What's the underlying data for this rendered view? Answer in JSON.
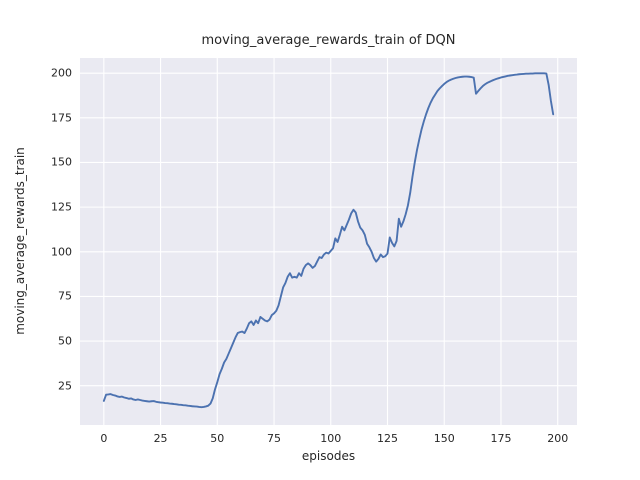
{
  "chart_data": {
    "type": "line",
    "title": "moving_average_rewards_train of DQN",
    "xlabel": "episodes",
    "ylabel": "moving_average_rewards_train",
    "x_ticks": [
      0,
      25,
      50,
      75,
      100,
      125,
      150,
      175,
      200
    ],
    "y_ticks": [
      25,
      50,
      75,
      100,
      125,
      150,
      175,
      200
    ],
    "xlim": [
      -10.5,
      208.5
    ],
    "ylim": [
      3,
      208.5
    ],
    "grid": true,
    "legend_position": "none",
    "colors": {
      "line": "#4C72B0",
      "plot_background": "#EAEAF2",
      "figure_background": "#FFFFFF",
      "gridline": "#FFFFFF",
      "text": "#262626"
    },
    "series": [
      {
        "name": "moving_average_rewards_train",
        "color": "#4C72B0",
        "x_start": 0,
        "x_step": 1,
        "values": [
          16.5,
          20,
          20.1,
          20.3,
          19.8,
          19.5,
          19,
          18.7,
          18.9,
          18.4,
          18.1,
          17.7,
          17.9,
          17.3,
          17,
          17.3,
          17,
          16.7,
          16.5,
          16.3,
          16.1,
          16.3,
          16.4,
          16,
          15.8,
          15.6,
          15.5,
          15.3,
          15.2,
          15,
          14.9,
          14.7,
          14.6,
          14.4,
          14.3,
          14.1,
          14,
          13.8,
          13.7,
          13.5,
          13.4,
          13.3,
          13.1,
          13,
          13.1,
          13.4,
          13.8,
          15,
          18,
          23,
          27,
          31.5,
          34.5,
          38,
          40,
          43,
          46,
          49,
          52,
          54.5,
          55,
          55.3,
          54.5,
          57,
          60,
          61,
          59,
          61.5,
          60,
          63.5,
          62.5,
          61.5,
          61,
          62,
          64.5,
          65.5,
          67,
          70,
          75,
          80,
          82.5,
          86,
          88,
          85.5,
          86,
          85.5,
          88,
          86.5,
          90.5,
          92.5,
          93.5,
          92.5,
          91,
          92,
          94.5,
          97,
          96.5,
          98.5,
          99.5,
          99,
          100.5,
          102,
          107.5,
          105.5,
          109.5,
          114,
          112,
          115,
          118,
          121.5,
          123.5,
          122,
          117,
          113.5,
          112,
          109.5,
          104.5,
          102.5,
          100,
          96.5,
          94.5,
          96,
          98.5,
          97,
          97.5,
          99,
          108,
          105,
          103,
          106,
          118.5,
          114,
          117,
          121,
          126,
          133,
          142,
          150,
          157,
          163,
          168.5,
          173,
          177,
          180.5,
          183.5,
          186,
          188,
          190,
          191.5,
          192.8,
          194,
          195,
          195.8,
          196.4,
          196.9,
          197.3,
          197.6,
          197.8,
          198,
          198.1,
          198.1,
          198,
          197.8,
          197.5,
          188.5,
          190,
          191.5,
          192.8,
          193.8,
          194.6,
          195.2,
          195.8,
          196.3,
          196.8,
          197.2,
          197.6,
          197.9,
          198.2,
          198.5,
          198.7,
          198.9,
          199.1,
          199.2,
          199.4,
          199.5,
          199.6,
          199.7,
          199.7,
          199.8,
          199.8,
          199.9,
          199.9,
          199.9,
          199.9,
          199.9,
          199.8,
          193.5,
          184.5,
          177
        ]
      }
    ]
  }
}
